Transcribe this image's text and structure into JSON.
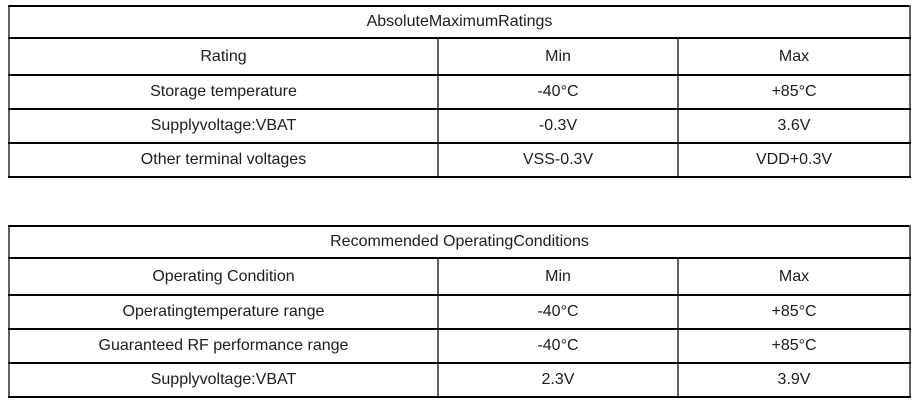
{
  "colors": {
    "background": "#ffffff",
    "border_horizontal": "#000000",
    "border_vertical": "#636363",
    "text": "#1c1c1c"
  },
  "tables": [
    {
      "title": "AbsoluteMaximumRatings",
      "columns": [
        "Rating",
        "Min",
        "Max"
      ],
      "rows": [
        [
          "Storage temperature",
          "-40°C",
          "+85°C"
        ],
        [
          "Supplyvoltage:VBAT",
          "-0.3V",
          "3.6V"
        ],
        [
          "Other terminal voltages",
          "VSS-0.3V",
          "VDD+0.3V"
        ]
      ]
    },
    {
      "title": "Recommended OperatingConditions",
      "columns": [
        "Operating Condition",
        "Min",
        "Max"
      ],
      "rows": [
        [
          "Operatingtemperature range",
          "-40°C",
          "+85°C"
        ],
        [
          "Guaranteed RF performance range",
          "-40°C",
          "+85°C"
        ],
        [
          "Supplyvoltage:VBAT",
          "2.3V",
          "3.9V"
        ]
      ]
    }
  ]
}
